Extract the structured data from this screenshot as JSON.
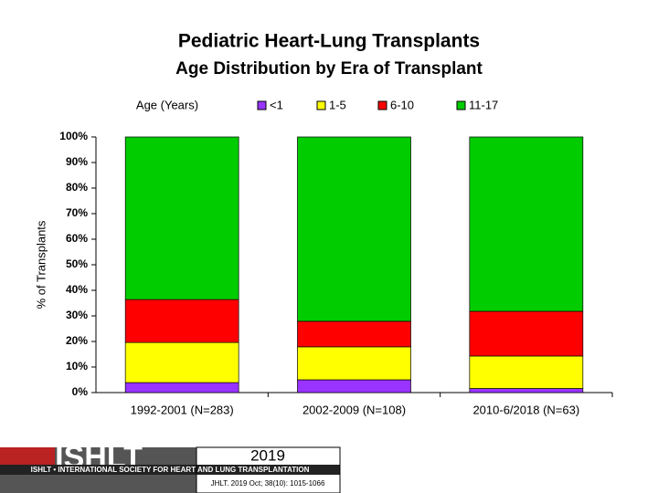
{
  "chart_data": {
    "type": "stacked_bar",
    "title": "Pediatric Heart-Lung Transplants",
    "subtitle": "Age Distribution by Era of Transplant",
    "y_axis_label": "% of Transplants",
    "legend_title": "Age (Years)",
    "legend_position": "top",
    "categories": [
      "1992-2001 (N=283)",
      "2002-2009 (N=108)",
      "2010-6/2018 (N=63)"
    ],
    "series": [
      {
        "name": "<1",
        "color": "#9933ff",
        "values": [
          3.9,
          5.0,
          1.6
        ]
      },
      {
        "name": "1-5",
        "color": "#ffff00",
        "values": [
          15.7,
          12.9,
          12.7
        ]
      },
      {
        "name": "6-10",
        "color": "#ff0000",
        "values": [
          16.8,
          10.0,
          17.5
        ]
      },
      {
        "name": "11-17",
        "color": "#00cc00",
        "values": [
          63.6,
          72.1,
          68.2
        ]
      }
    ],
    "ylim": [
      0,
      100
    ],
    "yticks": [
      {
        "value": 0,
        "label": "0%"
      },
      {
        "value": 10,
        "label": "10%"
      },
      {
        "value": 20,
        "label": "20%"
      },
      {
        "value": 30,
        "label": "30%"
      },
      {
        "value": 40,
        "label": "40%"
      },
      {
        "value": 50,
        "label": "50%"
      },
      {
        "value": 60,
        "label": "60%"
      },
      {
        "value": 70,
        "label": "70%"
      },
      {
        "value": 80,
        "label": "80%"
      },
      {
        "value": 90,
        "label": "90%"
      },
      {
        "value": 100,
        "label": "100%"
      }
    ]
  },
  "footer": {
    "logo": "ISHLT",
    "society": "ISHLT • INTERNATIONAL SOCIETY FOR HEART AND LUNG TRANSPLANTATION",
    "year": "2019",
    "citation": "JHLT. 2019 Oct; 38(10): 1015-1066"
  }
}
